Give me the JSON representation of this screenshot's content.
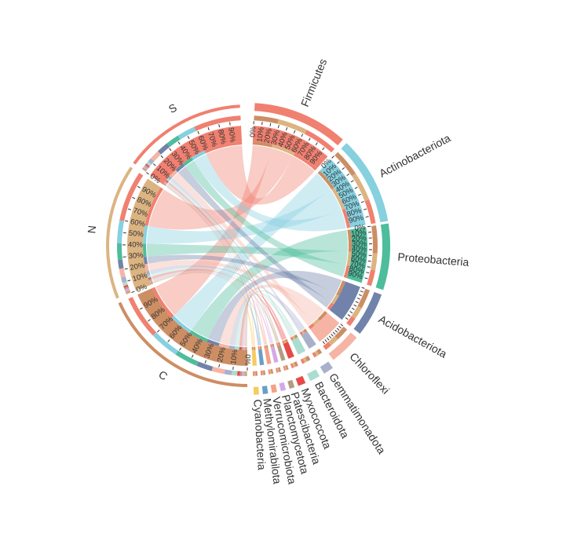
{
  "chart_data": {
    "type": "chord",
    "title": "",
    "colors": {
      "Firmicutes": "#f08070",
      "Actinobacteriota": "#86d0e0",
      "Proteobacteria": "#4dbd9c",
      "Acidobacteriota": "#7183aa",
      "Chloroflexi": "#f6b4a4",
      "Gemmatimonadota": "#a9b0cc",
      "Bacteroidota": "#a9ddd0",
      "Myxococcota": "#e84a4a",
      "Patescibacteria": "#b49c80",
      "Planctomycetota": "#d4a8e6",
      "Verrucomicrobiota": "#f4a184",
      "Methylomirabilota": "#6a9ec8",
      "Cyanobacteria": "#f5cb60",
      "S": "#f08070",
      "N": "#dcb482",
      "C": "#cd8e64"
    },
    "groups": [
      "S",
      "N",
      "C"
    ],
    "phyla": [
      {
        "name": "Firmicutes",
        "shares": {
          "S": 0.38,
          "N": 0.34,
          "C": 0.28
        }
      },
      {
        "name": "Actinobacteriota",
        "shares": {
          "S": 0.3,
          "N": 0.36,
          "C": 0.34
        }
      },
      {
        "name": "Proteobacteria",
        "shares": {
          "S": 0.26,
          "N": 0.28,
          "C": 0.46
        }
      },
      {
        "name": "Acidobacteriota",
        "shares": {
          "S": 0.22,
          "N": 0.3,
          "C": 0.48
        }
      },
      {
        "name": "Chloroflexi",
        "shares": {
          "S": 0.24,
          "N": 0.3,
          "C": 0.46
        }
      },
      {
        "name": "Gemmatimonadota",
        "shares": {
          "S": 0.3,
          "N": 0.3,
          "C": 0.4
        }
      },
      {
        "name": "Bacteroidota",
        "shares": {
          "S": 0.3,
          "N": 0.3,
          "C": 0.4
        }
      },
      {
        "name": "Myxococcota",
        "shares": {
          "S": 0.3,
          "N": 0.3,
          "C": 0.4
        }
      },
      {
        "name": "Patescibacteria",
        "shares": {
          "S": 0.3,
          "N": 0.3,
          "C": 0.4
        }
      },
      {
        "name": "Planctomycetota",
        "shares": {
          "S": 0.3,
          "N": 0.3,
          "C": 0.4
        }
      },
      {
        "name": "Verrucomicrobiota",
        "shares": {
          "S": 0.3,
          "N": 0.3,
          "C": 0.4
        }
      },
      {
        "name": "Methylomirabilota",
        "shares": {
          "S": 0.3,
          "N": 0.3,
          "C": 0.4
        }
      },
      {
        "name": "Cyanobacteria",
        "shares": {
          "S": 0.3,
          "N": 0.3,
          "C": 0.4
        }
      }
    ],
    "group_composition": {
      "S": [
        {
          "phylum": "Firmicutes",
          "value": 0.34
        },
        {
          "phylum": "Actinobacteriota",
          "value": 0.13
        },
        {
          "phylum": "Proteobacteria",
          "value": 0.095
        },
        {
          "phylum": "Acidobacteriota",
          "value": 0.085
        },
        {
          "phylum": "Chloroflexi",
          "value": 0.07
        },
        {
          "phylum": "Gemmatimonadota",
          "value": 0.03
        },
        {
          "phylum": "Bacteroidota",
          "value": 0.02
        },
        {
          "phylum": "Myxococcota",
          "value": 0.01
        },
        {
          "phylum": "Patescibacteria",
          "value": 0.01
        },
        {
          "phylum": "Planctomycetota",
          "value": 0.01
        },
        {
          "phylum": "Verrucomicrobiota",
          "value": 0.01
        },
        {
          "phylum": "Methylomirabilota",
          "value": 0.005
        },
        {
          "phylum": "Cyanobacteria",
          "value": 0.005
        }
      ],
      "N": [
        {
          "phylum": "Firmicutes",
          "value": 0.29
        },
        {
          "phylum": "Actinobacteriota",
          "value": 0.13
        },
        {
          "phylum": "Proteobacteria",
          "value": 0.095
        },
        {
          "phylum": "Acidobacteriota",
          "value": 0.05
        },
        {
          "phylum": "Chloroflexi",
          "value": 0.05
        },
        {
          "phylum": "Gemmatimonadota",
          "value": 0.03
        },
        {
          "phylum": "Bacteroidota",
          "value": 0.02
        },
        {
          "phylum": "Myxococcota",
          "value": 0.01
        },
        {
          "phylum": "Patescibacteria",
          "value": 0.01
        },
        {
          "phylum": "Planctomycetota",
          "value": 0.01
        },
        {
          "phylum": "Verrucomicrobiota",
          "value": 0.01
        },
        {
          "phylum": "Methylomirabilota",
          "value": 0.005
        },
        {
          "phylum": "Cyanobacteria",
          "value": 0.005
        }
      ],
      "C": [
        {
          "phylum": "Firmicutes",
          "value": 0.24
        },
        {
          "phylum": "Actinobacteriota",
          "value": 0.16
        },
        {
          "phylum": "Proteobacteria",
          "value": 0.13
        },
        {
          "phylum": "Acidobacteriota",
          "value": 0.085
        },
        {
          "phylum": "Chloroflexi",
          "value": 0.07
        },
        {
          "phylum": "Gemmatimonadota",
          "value": 0.04
        },
        {
          "phylum": "Bacteroidota",
          "value": 0.03
        },
        {
          "phylum": "Myxococcota",
          "value": 0.015
        },
        {
          "phylum": "Patescibacteria",
          "value": 0.01
        },
        {
          "phylum": "Planctomycetota",
          "value": 0.01
        },
        {
          "phylum": "Verrucomicrobiota",
          "value": 0.01
        },
        {
          "phylum": "Methylomirabilota",
          "value": 0.005
        },
        {
          "phylum": "Cyanobacteria",
          "value": 0.005
        }
      ]
    },
    "ticks": {
      "Firmicutes": [
        "0%",
        "10%",
        "20%",
        "30%",
        "40%",
        "50%",
        "60%",
        "70%",
        "80%",
        "90%"
      ],
      "Actinobacteriota": [
        "0%",
        "10%",
        "20%",
        "30%",
        "40%",
        "50%",
        "60%",
        "70%",
        "80%",
        "90%"
      ],
      "Proteobacteria": [
        "0%",
        "10%",
        "20%",
        "30%",
        "40%",
        "50%",
        "60%",
        "70%",
        "80%",
        "90%"
      ],
      "S": [
        "0%",
        "10%",
        "20%",
        "30%",
        "40%",
        "50%",
        "60%",
        "70%",
        "80%",
        "90%"
      ],
      "N": [
        "0%",
        "10%",
        "20%",
        "30%",
        "40%",
        "50%",
        "60%",
        "70%",
        "80%",
        "90%"
      ],
      "C": [
        "0%",
        "10%",
        "20%",
        "30%",
        "40%",
        "50%",
        "60%",
        "70%",
        "80%",
        "90%"
      ]
    }
  }
}
